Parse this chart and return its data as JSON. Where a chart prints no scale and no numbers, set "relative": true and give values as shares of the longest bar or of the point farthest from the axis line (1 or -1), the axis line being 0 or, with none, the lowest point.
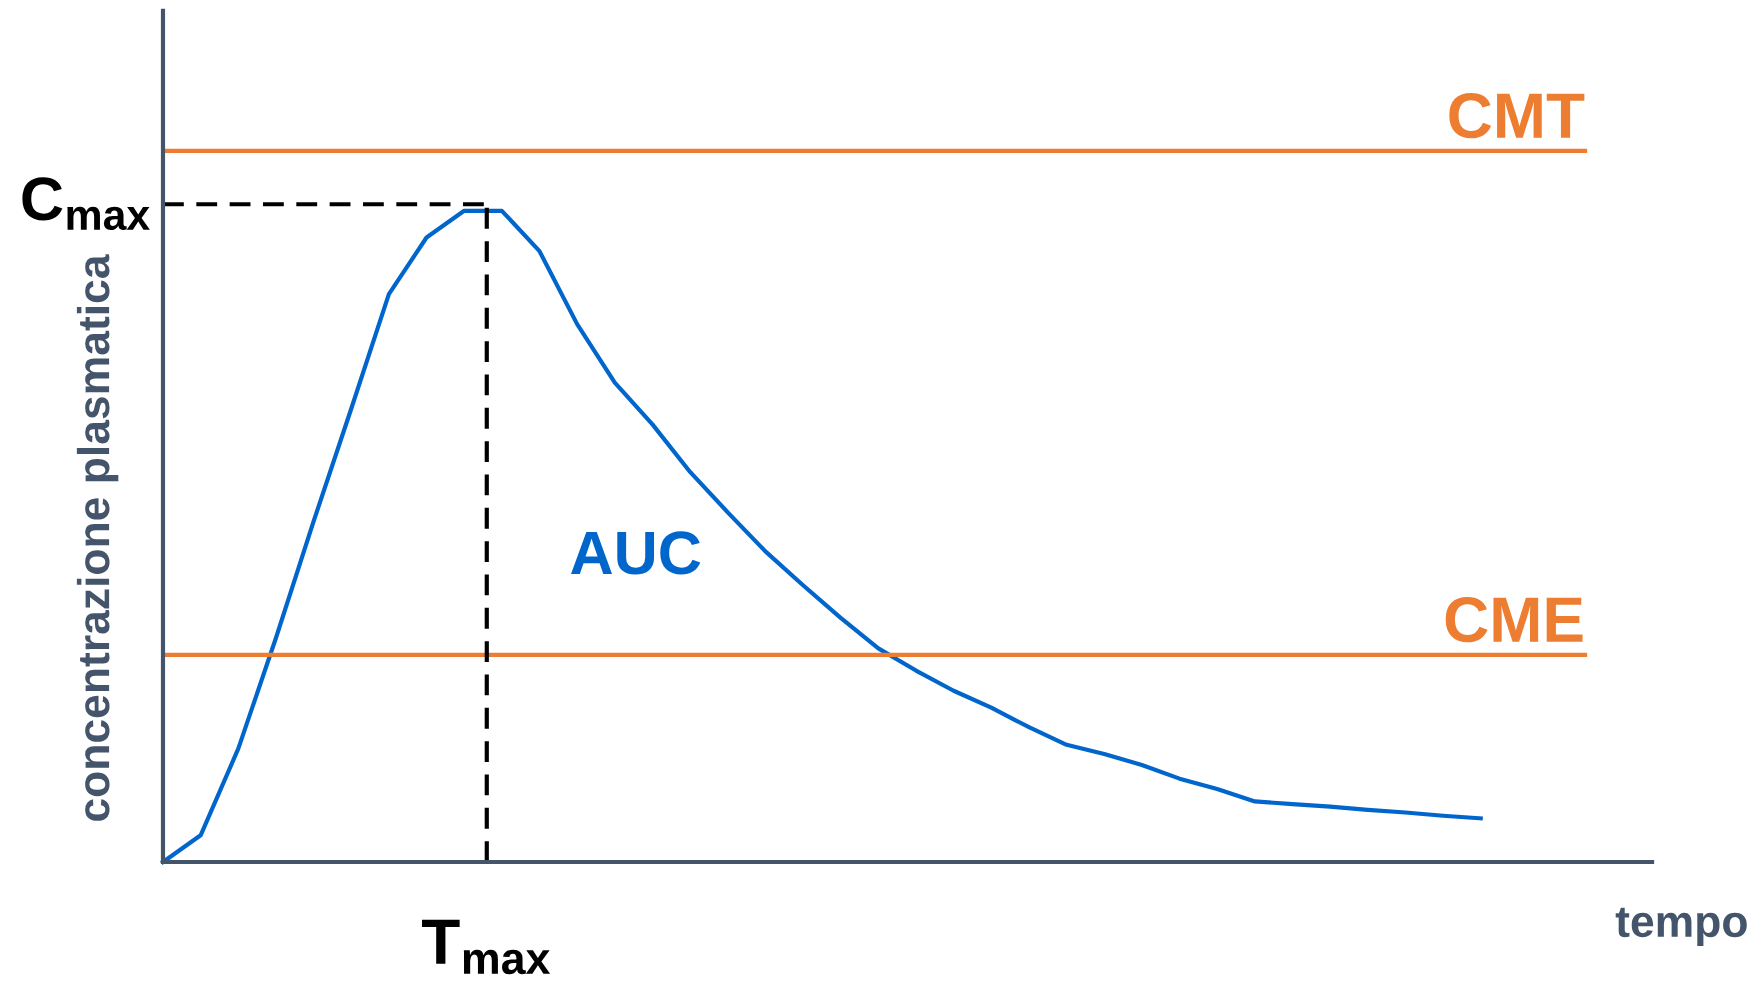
{
  "chart_data": {
    "type": "line",
    "relative": true,
    "xlabel": "tempo",
    "ylabel": "concentrazione plasmatica",
    "grid": false,
    "legend": false,
    "marker": "none",
    "categories": [
      null,
      null,
      null,
      null,
      null,
      null,
      null,
      null,
      null,
      null,
      null,
      null,
      null,
      null,
      null,
      null,
      null,
      null,
      null,
      null,
      null,
      null,
      null,
      null,
      null,
      null,
      null,
      null,
      null,
      null,
      null,
      null,
      null,
      null,
      null,
      null
    ],
    "series": [
      {
        "color": "#0066cc",
        "values": [
          0,
          0.041,
          0.174,
          0.344,
          0.523,
          0.696,
          0.872,
          0.959,
          1.0,
          1.0,
          0.938,
          0.826,
          0.736,
          0.672,
          0.599,
          0.537,
          0.477,
          0.425,
          0.375,
          0.328,
          0.294,
          0.263,
          0.237,
          0.207,
          0.18,
          0.166,
          0.149,
          0.128,
          0.112,
          0.093,
          0.089,
          0.085,
          0.08,
          0.076,
          0.071,
          0.067
        ]
      }
    ],
    "ref_lines": [
      {
        "axis": "y",
        "value": 1.092,
        "label": "CMT",
        "color": "#ed7d31",
        "line_style": "solid"
      },
      {
        "axis": "y",
        "value": 0.318,
        "label": "CME",
        "color": "#ed7d31",
        "line_style": "solid"
      },
      {
        "axis": "y",
        "value": 1.01,
        "label": "C$_{max}$",
        "color": "#000000",
        "line_style": "dashed"
      }
    ],
    "annotations": [
      "AUC",
      "T$_{max}$"
    ]
  }
}
